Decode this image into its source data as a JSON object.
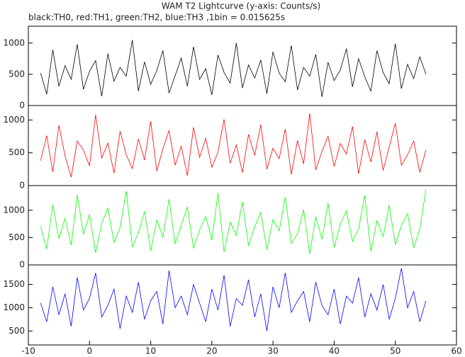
{
  "chart_data": [
    {
      "type": "line",
      "title": "WAM T2 Lightcurve (y-axis: Counts/s)",
      "subtitle": "black:TH0, red:TH1, green:TH2, blue:TH3 ,1bin = 0.015625s",
      "x": [
        -8,
        -7,
        -6,
        -5,
        -4,
        -3,
        -2,
        -1,
        0,
        1,
        2,
        3,
        4,
        5,
        6,
        7,
        8,
        9,
        10,
        11,
        12,
        13,
        14,
        15,
        16,
        17,
        18,
        19,
        20,
        21,
        22,
        23,
        24,
        25,
        26,
        27,
        28,
        29,
        30,
        31,
        32,
        33,
        34,
        35,
        36,
        37,
        38,
        39,
        40,
        41,
        42,
        43,
        44,
        45,
        46,
        47,
        48,
        49,
        50,
        51,
        52,
        53,
        54,
        55
      ],
      "series": [
        {
          "color": "#000000",
          "values": [
            520,
            180,
            890,
            310,
            640,
            420,
            980,
            260,
            550,
            720,
            150,
            830,
            390,
            610,
            470,
            1050,
            230,
            700,
            340,
            560,
            880,
            200,
            480,
            760,
            310,
            940,
            420,
            590,
            170,
            810,
            530,
            360,
            1000,
            280,
            650,
            440,
            730,
            190,
            860,
            520,
            380,
            960,
            250,
            610,
            470,
            820,
            140,
            690,
            400,
            570,
            910,
            300,
            750,
            460,
            230,
            880,
            530,
            350,
            990,
            270,
            660,
            430,
            780,
            500
          ]
        }
      ],
      "xlim": [
        -10,
        60
      ],
      "ylim": [
        0,
        1270
      ],
      "yticks": [
        0,
        500,
        1000
      ]
    },
    {
      "type": "line",
      "x": [
        -8,
        -7,
        -6,
        -5,
        -4,
        -3,
        -2,
        -1,
        0,
        1,
        2,
        3,
        4,
        5,
        6,
        7,
        8,
        9,
        10,
        11,
        12,
        13,
        14,
        15,
        16,
        17,
        18,
        19,
        20,
        21,
        22,
        23,
        24,
        25,
        26,
        27,
        28,
        29,
        30,
        31,
        32,
        33,
        34,
        35,
        36,
        37,
        38,
        39,
        40,
        41,
        42,
        43,
        44,
        45,
        46,
        47,
        48,
        49,
        50,
        51,
        52,
        53,
        54,
        55
      ],
      "series": [
        {
          "color": "#ff0000",
          "values": [
            380,
            760,
            210,
            920,
            450,
            130,
            680,
            540,
            300,
            1080,
            420,
            650,
            190,
            830,
            470,
            260,
            710,
            390,
            980,
            220,
            560,
            840,
            310,
            600,
            150,
            890,
            430,
            720,
            280,
            510,
            1010,
            340,
            620,
            200,
            780,
            460,
            930,
            250,
            570,
            410,
            860,
            170,
            690,
            330,
            1100,
            240,
            520,
            750,
            290,
            640,
            480,
            900,
            180,
            700,
            360,
            820,
            230,
            590,
            950,
            310,
            470,
            680,
            200,
            540
          ]
        }
      ],
      "xlim": [
        -10,
        60
      ],
      "ylim": [
        0,
        1220
      ],
      "yticks": [
        0,
        500,
        1000
      ]
    },
    {
      "type": "line",
      "x": [
        -8,
        -7,
        -6,
        -5,
        -4,
        -3,
        -2,
        -1,
        0,
        1,
        2,
        3,
        4,
        5,
        6,
        7,
        8,
        9,
        10,
        11,
        12,
        13,
        14,
        15,
        16,
        17,
        18,
        19,
        20,
        21,
        22,
        23,
        24,
        25,
        26,
        27,
        28,
        29,
        30,
        31,
        32,
        33,
        34,
        35,
        36,
        37,
        38,
        39,
        40,
        41,
        42,
        43,
        44,
        45,
        46,
        47,
        48,
        49,
        50,
        51,
        52,
        53,
        54,
        55
      ],
      "series": [
        {
          "color": "#00ff00",
          "values": [
            700,
            290,
            1100,
            480,
            850,
            360,
            1280,
            560,
            920,
            220,
            760,
            1040,
            410,
            680,
            1350,
            330,
            590,
            980,
            260,
            820,
            510,
            1200,
            380,
            730,
            1060,
            300,
            640,
            890,
            450,
            1310,
            240,
            780,
            540,
            1150,
            350,
            700,
            960,
            280,
            830,
            620,
            1240,
            390,
            570,
            1010,
            200,
            880,
            470,
            1130,
            320,
            750,
            990,
            430,
            660,
            1270,
            250,
            810,
            520,
            1090,
            370,
            720,
            940,
            310,
            650,
            1380
          ]
        }
      ],
      "xlim": [
        -10,
        60
      ],
      "ylim": [
        0,
        1450
      ],
      "yticks": [
        0,
        500,
        1000
      ]
    },
    {
      "type": "line",
      "x": [
        -8,
        -7,
        -6,
        -5,
        -4,
        -3,
        -2,
        -1,
        0,
        1,
        2,
        3,
        4,
        5,
        6,
        7,
        8,
        9,
        10,
        11,
        12,
        13,
        14,
        15,
        16,
        17,
        18,
        19,
        20,
        21,
        22,
        23,
        24,
        25,
        26,
        27,
        28,
        29,
        30,
        31,
        32,
        33,
        34,
        35,
        36,
        37,
        38,
        39,
        40,
        41,
        42,
        43,
        44,
        45,
        46,
        47,
        48,
        49,
        50,
        51,
        52,
        53,
        54,
        55
      ],
      "series": [
        {
          "color": "#0000ff",
          "values": [
            1100,
            700,
            1450,
            850,
            1300,
            600,
            1650,
            950,
            1200,
            1750,
            800,
            1050,
            1400,
            550,
            1250,
            900,
            1550,
            750,
            1150,
            1350,
            650,
            1800,
            1000,
            1250,
            850,
            1500,
            1100,
            700,
            1400,
            950,
            1700,
            600,
            1200,
            1050,
            1600,
            800,
            1300,
            500,
            1450,
            1000,
            1750,
            900,
            1150,
            1350,
            700,
            1550,
            1050,
            850,
            1400,
            650,
            1250,
            1100,
            1650,
            800,
            1300,
            950,
            1500,
            750,
            1200,
            1850,
            1000,
            1350,
            700,
            1150
          ]
        }
      ],
      "xlim": [
        -10,
        60
      ],
      "ylim": [
        200,
        1920
      ],
      "yticks": [
        500,
        1000,
        1500
      ],
      "xticks": [
        -10,
        0,
        10,
        20,
        30,
        40,
        50,
        60
      ]
    }
  ]
}
